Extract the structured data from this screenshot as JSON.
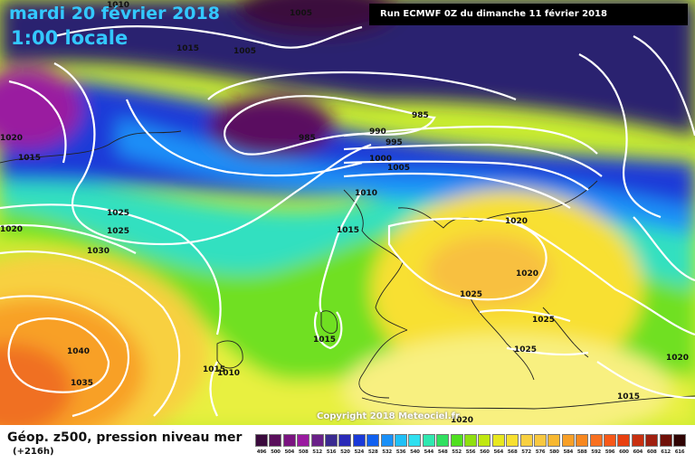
{
  "header": {
    "date": "mardi 20 février 2018",
    "time": "1:00 locale",
    "run": "Run ECMWF 0Z du dimanche 11 février 2018"
  },
  "copyright": "Copyright 2018 Meteociel.fr",
  "footer": {
    "parameter": "Géop. z500, pression niveau mer",
    "lead_time": "(+216h)"
  },
  "isobar_labels": [
    "1010",
    "1005",
    "1015",
    "1005",
    "1020",
    "1015",
    "985",
    "985",
    "990",
    "995",
    "1000",
    "1005",
    "1010",
    "1020",
    "1025",
    "1030",
    "1020",
    "1015",
    "1025",
    "1020",
    "1025",
    "1025",
    "1015",
    "1015",
    "1010",
    "1040",
    "1035",
    "1020",
    "1020",
    "1015"
  ],
  "legend": {
    "values": [
      496,
      500,
      504,
      508,
      512,
      516,
      520,
      524,
      528,
      532,
      536,
      540,
      544,
      548,
      552,
      556,
      560,
      564,
      568,
      572,
      576,
      580,
      584,
      588,
      592,
      596,
      600,
      604,
      608,
      612,
      616
    ],
    "colors": [
      "#3a0a3c",
      "#5a0f5c",
      "#7a1480",
      "#9a1aa0",
      "#6a2088",
      "#3a2a90",
      "#2a2ab8",
      "#1a3ad8",
      "#1060f0",
      "#1a90f8",
      "#20c0f8",
      "#30e0f0",
      "#30e8b0",
      "#30e060",
      "#50e020",
      "#90e010",
      "#c0e810",
      "#e8e820",
      "#f8e030",
      "#f8d040",
      "#f8c840",
      "#f8b830",
      "#f8a028",
      "#f88820",
      "#f87020",
      "#f85818",
      "#e84010",
      "#c83010",
      "#a02010",
      "#701008",
      "#300404"
    ]
  }
}
